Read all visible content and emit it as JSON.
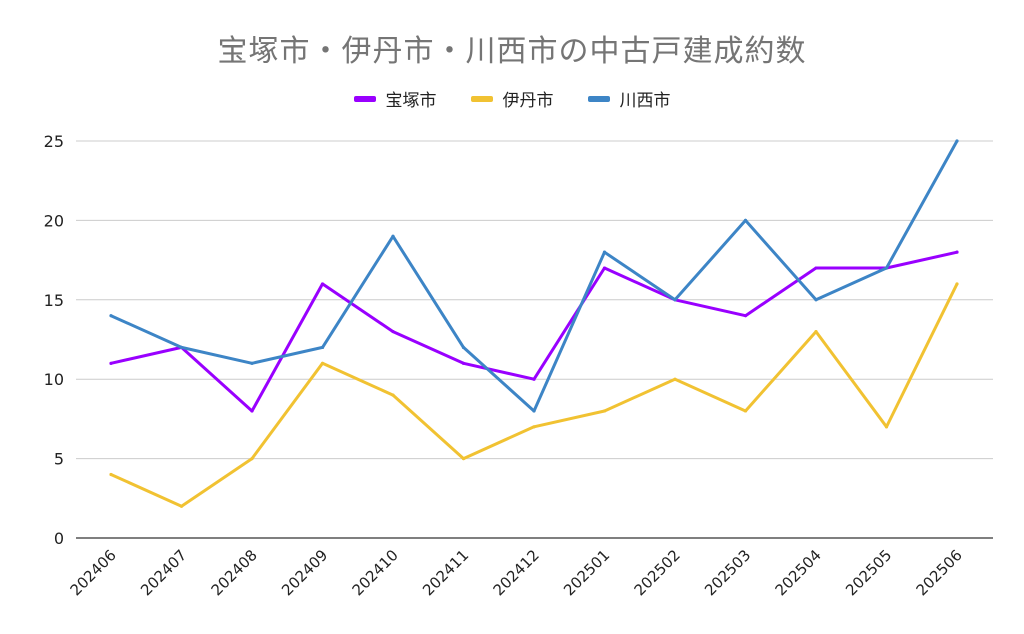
{
  "chart_data": {
    "type": "line",
    "title": "宝塚市・伊丹市・川西市の中古戸建成約数",
    "categories": [
      "202406",
      "202407",
      "202408",
      "202409",
      "202410",
      "202411",
      "202412",
      "202501",
      "202502",
      "202503",
      "202504",
      "202505",
      "202506"
    ],
    "series": [
      {
        "name": "宝塚市",
        "color": "#9900ff",
        "values": [
          11,
          12,
          8,
          16,
          13,
          11,
          10,
          17,
          15,
          14,
          17,
          17,
          18
        ]
      },
      {
        "name": "伊丹市",
        "color": "#f1c232",
        "values": [
          4,
          2,
          5,
          11,
          9,
          5,
          7,
          8,
          10,
          8,
          13,
          7,
          16
        ]
      },
      {
        "name": "川西市",
        "color": "#3d85c6",
        "values": [
          14,
          12,
          11,
          12,
          19,
          12,
          8,
          18,
          15,
          20,
          15,
          17,
          25
        ]
      }
    ],
    "ylim": [
      0,
      25
    ],
    "yticks": [
      0,
      5,
      10,
      15,
      20,
      25
    ],
    "grid": true,
    "legend_position": "top-center"
  }
}
